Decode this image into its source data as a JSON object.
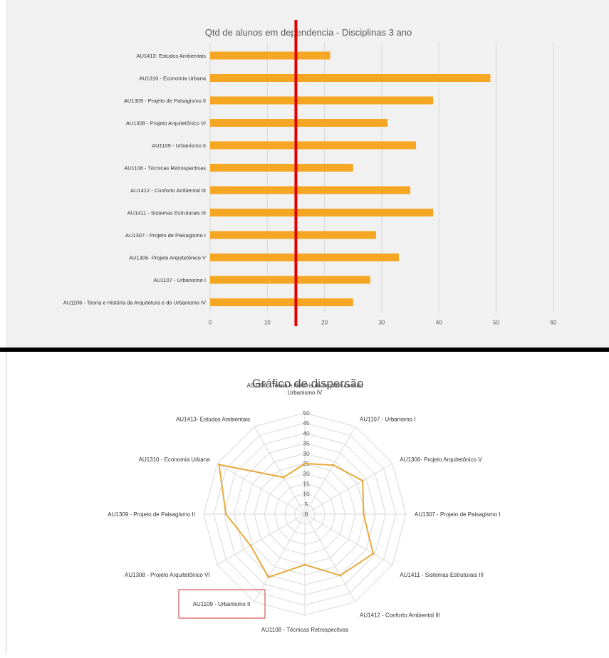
{
  "colors": {
    "bar": "#f5a623",
    "reference_line": "#e00000",
    "radar_line": "#e8a93a",
    "highlight_box": "#d9534f",
    "grid": "#d9d9d9",
    "text": "#595959"
  },
  "chart_data": [
    {
      "type": "bar",
      "orientation": "horizontal",
      "title": "Qtd de alunos em dependencia - Disciplinas  3 ano",
      "categories": [
        "AU1413- Estudos Ambientais",
        "AU1310 - Economia Urbana",
        "AU1309 - Projeto de Paisagismo II",
        "AU1308 - Projeto Arquitetônico VI",
        "AU1109 - Urbanismo II",
        "AU1108 - Técnicas Retrospectivas",
        "AU1412 - Conforto Ambiental III",
        "AU1411 - Sistemas Estruturais III",
        "AU1307 - Projeto de Paisagismo I",
        "AU1306- Projeto Arquitetônico V",
        "AU1107 - Urbanismo I",
        "AU1106 - Teoria e História da Arquitetura e do Urbanismo IV"
      ],
      "values": [
        21,
        49,
        39,
        31,
        36,
        25,
        35,
        39,
        29,
        33,
        28,
        25
      ],
      "xlim": [
        0,
        60
      ],
      "xticks": [
        0,
        10,
        20,
        30,
        40,
        50,
        60
      ],
      "reference_line_x": 15,
      "grid": true
    },
    {
      "type": "radar",
      "title": "Gráfico de dispersão",
      "categories": [
        "AU1106 - Teoria e História da Arquitetura e do Urbanismo IV",
        "AU1107 - Urbanismo I",
        "AU1306- Projeto Arquitetônico V",
        "AU1307 - Projeto de Paisagismo I",
        "AU1411 - Sistemas Estruturais III",
        "AU1412 - Conforto Ambiental III",
        "AU1108 - Técnicas Retrospectivas",
        "AU1109 - Urbanismo II",
        "AU1308 - Projeto Arquitetônico VI",
        "AU1309 - Projeto de Paisagismo II",
        "AU1310 - Economia Urbana",
        "AU1413- Estudos Ambientais"
      ],
      "values": [
        25,
        28,
        33,
        29,
        39,
        35,
        25,
        36,
        31,
        39,
        49,
        21
      ],
      "rlim": [
        0,
        50
      ],
      "rticks": [
        0,
        5,
        10,
        15,
        20,
        25,
        30,
        35,
        40,
        45,
        50
      ],
      "highlighted_category": "AU1109 - Urbanismo II"
    }
  ]
}
